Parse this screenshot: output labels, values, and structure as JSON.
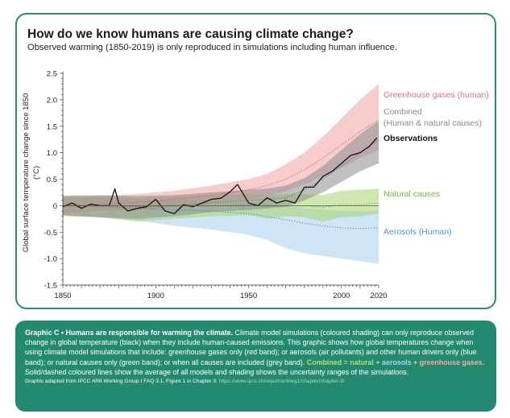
{
  "header": {
    "title": "How do we know humans are causing climate change?",
    "subtitle": "Observed warming (1850-2019) is only reproduced in simulations including human influence."
  },
  "chart_data": {
    "type": "line",
    "title": "How do we know humans are causing climate change?",
    "subtitle": "Observed warming (1850-2019) is only reproduced in simulations including human influence.",
    "xlabel": "",
    "ylabel": "Global surface temperature change since 1850 (°C)",
    "xlim": [
      1850,
      2020
    ],
    "ylim": [
      -1.5,
      2.5
    ],
    "x_ticks": [
      1850,
      1900,
      1950,
      2000,
      2020
    ],
    "y_ticks": [
      -1.5,
      -1.0,
      -0.5,
      0,
      0.5,
      1.0,
      1.5,
      2.0,
      2.5
    ],
    "y_tick_labels": [
      "-1.5",
      "-1.0",
      "-0.5",
      "0",
      "0.5",
      "1.0",
      "1.5",
      "2.0",
      "2.5"
    ],
    "grid": false,
    "legend": "right",
    "series": [
      {
        "name": "Greenhouse gases (human)",
        "color": "#f09a9a",
        "label_color": "#e8716e",
        "style": "dotted mean with shaded range",
        "x": [
          1850,
          1870,
          1890,
          1910,
          1930,
          1950,
          1960,
          1970,
          1980,
          1990,
          2000,
          2010,
          2020
        ],
        "mean": [
          0.0,
          0.03,
          0.06,
          0.12,
          0.2,
          0.3,
          0.38,
          0.5,
          0.68,
          0.9,
          1.15,
          1.4,
          1.62
        ],
        "low": [
          -0.15,
          -0.1,
          -0.08,
          -0.02,
          0.05,
          0.12,
          0.18,
          0.27,
          0.4,
          0.55,
          0.72,
          0.9,
          1.05
        ],
        "high": [
          0.15,
          0.18,
          0.22,
          0.28,
          0.38,
          0.5,
          0.6,
          0.78,
          1.0,
          1.3,
          1.65,
          2.0,
          2.3
        ]
      },
      {
        "name": "Combined (Human & natural causes)",
        "color": "#8c8c8c",
        "label_color": "#8a8a8a",
        "style": "dotted mean with shaded range",
        "x": [
          1850,
          1870,
          1890,
          1910,
          1930,
          1950,
          1960,
          1970,
          1980,
          1990,
          2000,
          2010,
          2020
        ],
        "mean": [
          0.0,
          0.0,
          -0.02,
          0.0,
          0.05,
          0.1,
          0.12,
          0.15,
          0.3,
          0.5,
          0.75,
          1.0,
          1.25
        ],
        "low": [
          -0.18,
          -0.22,
          -0.25,
          -0.2,
          -0.12,
          -0.08,
          -0.05,
          -0.02,
          0.1,
          0.25,
          0.45,
          0.65,
          0.8
        ],
        "high": [
          0.18,
          0.2,
          0.18,
          0.2,
          0.25,
          0.3,
          0.32,
          0.38,
          0.52,
          0.75,
          1.05,
          1.35,
          1.6
        ]
      },
      {
        "name": "Observations",
        "color": "#111111",
        "label_color": "#111111",
        "style": "solid",
        "x": [
          1850,
          1855,
          1860,
          1865,
          1870,
          1875,
          1878,
          1880,
          1885,
          1890,
          1895,
          1900,
          1905,
          1910,
          1915,
          1920,
          1925,
          1930,
          1935,
          1940,
          1944,
          1950,
          1955,
          1960,
          1965,
          1970,
          1975,
          1980,
          1985,
          1990,
          1995,
          2000,
          2005,
          2010,
          2015,
          2019
        ],
        "values": [
          -0.02,
          0.05,
          -0.05,
          0.03,
          0.0,
          0.0,
          0.32,
          0.05,
          -0.1,
          -0.05,
          -0.02,
          0.12,
          -0.1,
          -0.15,
          0.02,
          -0.02,
          0.05,
          0.12,
          0.14,
          0.26,
          0.4,
          0.05,
          0.0,
          0.15,
          0.05,
          0.1,
          0.05,
          0.35,
          0.35,
          0.55,
          0.65,
          0.8,
          0.95,
          1.0,
          1.12,
          1.28
        ]
      },
      {
        "name": "Natural causes",
        "color": "#a6d36f",
        "label_color": "#7ab648",
        "style": "dotted mean with shaded range",
        "x": [
          1850,
          1870,
          1890,
          1910,
          1930,
          1950,
          1960,
          1970,
          1980,
          1990,
          2000,
          2010,
          2020
        ],
        "mean": [
          0.0,
          -0.02,
          -0.05,
          -0.02,
          0.0,
          0.02,
          -0.02,
          0.0,
          0.0,
          -0.03,
          0.02,
          0.02,
          0.05
        ],
        "low": [
          -0.2,
          -0.22,
          -0.3,
          -0.25,
          -0.2,
          -0.18,
          -0.25,
          -0.2,
          -0.22,
          -0.3,
          -0.22,
          -0.2,
          -0.15
        ],
        "high": [
          0.2,
          0.18,
          0.15,
          0.18,
          0.2,
          0.22,
          0.2,
          0.22,
          0.22,
          0.2,
          0.28,
          0.3,
          0.32
        ]
      },
      {
        "name": "Aerosols (Human)",
        "color": "#a7cfee",
        "label_color": "#4f94d6",
        "style": "dotted mean with shaded range",
        "x": [
          1850,
          1870,
          1890,
          1910,
          1930,
          1950,
          1960,
          1970,
          1980,
          1990,
          2000,
          2010,
          2020
        ],
        "mean": [
          0.0,
          -0.02,
          -0.05,
          -0.08,
          -0.1,
          -0.15,
          -0.2,
          -0.27,
          -0.33,
          -0.38,
          -0.42,
          -0.43,
          -0.42
        ],
        "low": [
          -0.18,
          -0.22,
          -0.28,
          -0.38,
          -0.45,
          -0.55,
          -0.65,
          -0.8,
          -0.9,
          -0.95,
          -1.0,
          -1.05,
          -1.1
        ],
        "high": [
          0.18,
          0.15,
          0.12,
          0.12,
          0.1,
          0.08,
          0.05,
          0.0,
          -0.05,
          -0.08,
          -0.1,
          -0.1,
          -0.1
        ]
      }
    ],
    "legend_labels": {
      "ghg": "Greenhouse gases (human)",
      "combined_line1": "Combined",
      "combined_line2": "(Human & natural causes)",
      "observations": "Observations",
      "natural": "Natural causes",
      "aerosols": "Aerosols (Human)"
    }
  },
  "caption": {
    "lead": "Graphic C • Humans are responsible for warming the climate.",
    "text1": " Climate model simulations (coloured shading) can only reproduce observed change in global temperature (black) when they include human-caused emissions. This graphic shows how global temperatures change when using climate model simulations that include: greenhouse gases only (red band); or aerosols (air pollutants) and other human drivers only (blue band); or natural causes only (green band); or when all causes are included (grey band). ",
    "combined": "Combined",
    "eq": " = ",
    "natural": "natural",
    "plus1": " + ",
    "aerosols": "aerosols",
    "plus2": " + ",
    "ghg": "greenhouse gases",
    "dot": ".",
    "text2": " Solid/dashed coloured lines show the average of all models and shading shows the uncertainty ranges of the simulations.",
    "source": "Graphic adapted from IPCC AR6 Working Group I FAQ 3.1, Figure 1 in Chapter 3.",
    "source_link": "https://www.ipcc.ch/report/ar6/wg1/chapter/chapter-3/"
  }
}
